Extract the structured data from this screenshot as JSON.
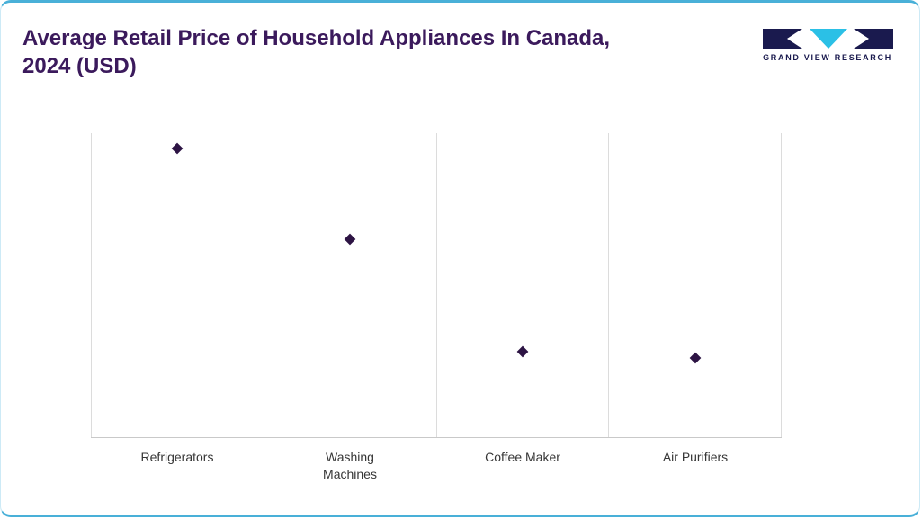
{
  "header": {
    "title": "Average Retail Price of Household Appliances In Canada, 2024 (USD)",
    "logo_text": "GRAND VIEW RESEARCH"
  },
  "colors": {
    "title_purple": "#3b1a5c",
    "marker_purple": "#2d1444",
    "border_blue": "#49b0d8",
    "logo_navy": "#1a1a4e",
    "logo_cyan": "#2bc0e6",
    "gridline_gray": "#dcdcdc"
  },
  "chart_data": {
    "type": "scatter",
    "title": "Average Retail Price of Household Appliances In Canada, 2024 (USD)",
    "categories": [
      "Refrigerators",
      "Washing Machines",
      "Coffee Maker",
      "Air Purifiers"
    ],
    "values_relative": [
      0.95,
      0.65,
      0.28,
      0.26
    ],
    "axis_unlabeled": true,
    "note": "Y-axis has no tick labels; values are relative marker heights as fraction of plot height (0 = axis baseline, 1 = plot top)",
    "xlabel": "",
    "ylabel": "",
    "ylim": [
      0,
      1
    ],
    "marker": "diamond",
    "grid": "vertical panel separators only, bottom axis line",
    "legend": "none"
  }
}
